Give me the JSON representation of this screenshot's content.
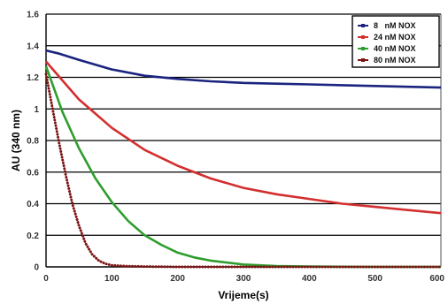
{
  "chart_data": {
    "type": "line",
    "xlabel": "Vrijeme(s)",
    "ylabel": "AU (340 nm)",
    "xlim": [
      0,
      600
    ],
    "ylim": [
      0,
      1.6
    ],
    "x_ticks": [
      "0",
      "100",
      "200",
      "300",
      "400",
      "500",
      "600"
    ],
    "y_ticks": [
      "0",
      "0.2",
      "0.4",
      "0.6",
      "0.8",
      "1",
      "1.2",
      "1.4",
      "1.6"
    ],
    "grid": "horizontal",
    "legend_position": "top-right",
    "series": [
      {
        "name": "8   nM NOX",
        "color": "#1a237e",
        "marker": "diamond",
        "x": [
          0,
          20,
          50,
          100,
          150,
          200,
          250,
          300,
          350,
          400,
          450,
          500,
          550,
          600
        ],
        "y": [
          1.37,
          1.35,
          1.31,
          1.25,
          1.21,
          1.19,
          1.175,
          1.165,
          1.16,
          1.155,
          1.15,
          1.145,
          1.14,
          1.135
        ]
      },
      {
        "name": "24 nM NOX",
        "color": "#d32f2f",
        "marker": "square",
        "x": [
          0,
          25,
          50,
          75,
          100,
          150,
          200,
          250,
          300,
          350,
          400,
          450,
          500,
          550,
          600
        ],
        "y": [
          1.3,
          1.18,
          1.06,
          0.97,
          0.88,
          0.74,
          0.64,
          0.56,
          0.5,
          0.46,
          0.43,
          0.4,
          0.38,
          0.36,
          0.34
        ]
      },
      {
        "name": "40 nM NOX",
        "color": "#2e9d2e",
        "marker": "triangle",
        "x": [
          0,
          25,
          50,
          75,
          100,
          125,
          150,
          175,
          200,
          225,
          250,
          300,
          350,
          400,
          500,
          600
        ],
        "y": [
          1.27,
          0.98,
          0.75,
          0.56,
          0.41,
          0.29,
          0.2,
          0.14,
          0.09,
          0.06,
          0.04,
          0.015,
          0.005,
          0.002,
          0.0,
          0.0
        ]
      },
      {
        "name": "80 nM NOX",
        "color": "#7b1414",
        "marker": "square",
        "x": [
          0,
          10,
          20,
          30,
          40,
          50,
          60,
          70,
          80,
          90,
          100,
          120,
          150,
          200,
          250,
          300,
          350,
          400,
          450,
          500,
          550,
          600
        ],
        "y": [
          1.22,
          1.0,
          0.78,
          0.58,
          0.4,
          0.26,
          0.15,
          0.08,
          0.04,
          0.02,
          0.01,
          0.005,
          0.002,
          0.0,
          0.0,
          0.0,
          0.0,
          0.0,
          0.0,
          0.0,
          0.0,
          0.0
        ]
      }
    ]
  }
}
